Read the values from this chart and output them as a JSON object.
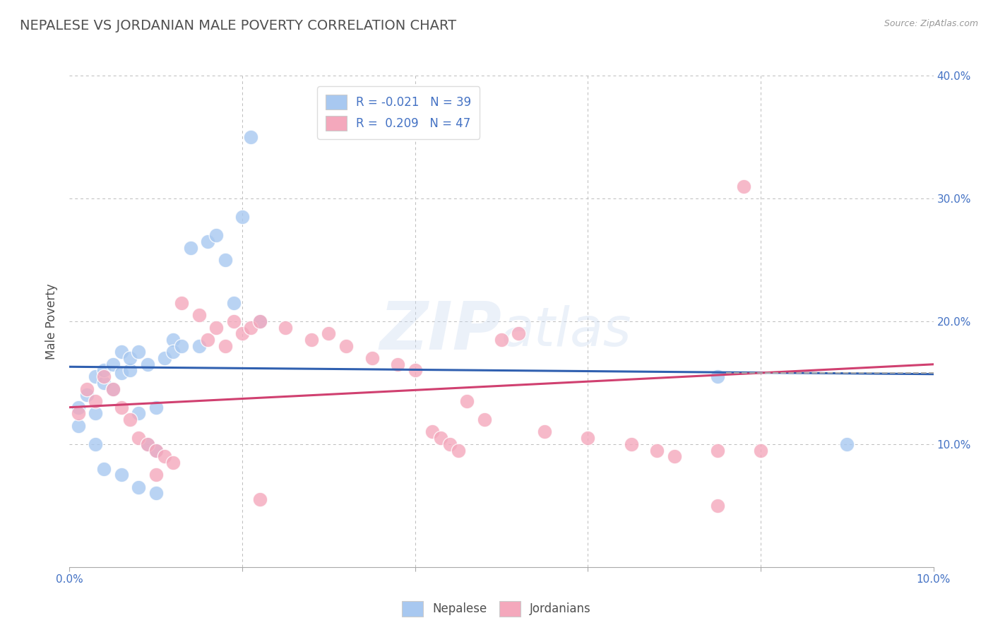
{
  "title": "NEPALESE VS JORDANIAN MALE POVERTY CORRELATION CHART",
  "source": "Source: ZipAtlas.com",
  "ylabel": "Male Poverty",
  "xlim": [
    0,
    0.1
  ],
  "ylim": [
    0,
    0.4
  ],
  "xticks": [
    0.0,
    0.02,
    0.04,
    0.06,
    0.08,
    0.1
  ],
  "yticks": [
    0.0,
    0.1,
    0.2,
    0.3,
    0.4
  ],
  "right_ytick_labels": [
    "",
    "10.0%",
    "20.0%",
    "30.0%",
    "40.0%"
  ],
  "bottom_xtick_labels_left": "0.0%",
  "bottom_xtick_labels_right": "10.0%",
  "blue_R": -0.021,
  "blue_N": 39,
  "pink_R": 0.209,
  "pink_N": 47,
  "blue_color": "#A8C8F0",
  "pink_color": "#F4A8BC",
  "blue_line_color": "#3060B0",
  "pink_line_color": "#D04070",
  "blue_scatter": [
    [
      0.001,
      0.13
    ],
    [
      0.002,
      0.14
    ],
    [
      0.003,
      0.155
    ],
    [
      0.003,
      0.125
    ],
    [
      0.004,
      0.15
    ],
    [
      0.004,
      0.16
    ],
    [
      0.005,
      0.145
    ],
    [
      0.005,
      0.165
    ],
    [
      0.006,
      0.158
    ],
    [
      0.006,
      0.175
    ],
    [
      0.007,
      0.16
    ],
    [
      0.007,
      0.17
    ],
    [
      0.008,
      0.175
    ],
    [
      0.008,
      0.125
    ],
    [
      0.009,
      0.165
    ],
    [
      0.009,
      0.1
    ],
    [
      0.01,
      0.13
    ],
    [
      0.01,
      0.095
    ],
    [
      0.011,
      0.17
    ],
    [
      0.012,
      0.185
    ],
    [
      0.012,
      0.175
    ],
    [
      0.013,
      0.18
    ],
    [
      0.014,
      0.26
    ],
    [
      0.015,
      0.18
    ],
    [
      0.016,
      0.265
    ],
    [
      0.017,
      0.27
    ],
    [
      0.018,
      0.25
    ],
    [
      0.019,
      0.215
    ],
    [
      0.02,
      0.285
    ],
    [
      0.021,
      0.35
    ],
    [
      0.022,
      0.2
    ],
    [
      0.003,
      0.1
    ],
    [
      0.001,
      0.115
    ],
    [
      0.004,
      0.08
    ],
    [
      0.006,
      0.075
    ],
    [
      0.008,
      0.065
    ],
    [
      0.01,
      0.06
    ],
    [
      0.075,
      0.155
    ],
    [
      0.09,
      0.1
    ]
  ],
  "pink_scatter": [
    [
      0.002,
      0.145
    ],
    [
      0.003,
      0.135
    ],
    [
      0.004,
      0.155
    ],
    [
      0.005,
      0.145
    ],
    [
      0.006,
      0.13
    ],
    [
      0.007,
      0.12
    ],
    [
      0.008,
      0.105
    ],
    [
      0.009,
      0.1
    ],
    [
      0.01,
      0.095
    ],
    [
      0.011,
      0.09
    ],
    [
      0.012,
      0.085
    ],
    [
      0.001,
      0.125
    ],
    [
      0.013,
      0.215
    ],
    [
      0.015,
      0.205
    ],
    [
      0.016,
      0.185
    ],
    [
      0.017,
      0.195
    ],
    [
      0.018,
      0.18
    ],
    [
      0.019,
      0.2
    ],
    [
      0.02,
      0.19
    ],
    [
      0.021,
      0.195
    ],
    [
      0.022,
      0.2
    ],
    [
      0.025,
      0.195
    ],
    [
      0.028,
      0.185
    ],
    [
      0.03,
      0.19
    ],
    [
      0.032,
      0.18
    ],
    [
      0.035,
      0.17
    ],
    [
      0.038,
      0.165
    ],
    [
      0.04,
      0.16
    ],
    [
      0.042,
      0.11
    ],
    [
      0.043,
      0.105
    ],
    [
      0.044,
      0.1
    ],
    [
      0.045,
      0.095
    ],
    [
      0.046,
      0.135
    ],
    [
      0.048,
      0.12
    ],
    [
      0.05,
      0.185
    ],
    [
      0.052,
      0.19
    ],
    [
      0.055,
      0.11
    ],
    [
      0.06,
      0.105
    ],
    [
      0.065,
      0.1
    ],
    [
      0.068,
      0.095
    ],
    [
      0.07,
      0.09
    ],
    [
      0.075,
      0.095
    ],
    [
      0.08,
      0.095
    ],
    [
      0.01,
      0.075
    ],
    [
      0.022,
      0.055
    ],
    [
      0.075,
      0.05
    ],
    [
      0.078,
      0.31
    ]
  ],
  "blue_trend_x": [
    0.0,
    0.1
  ],
  "blue_trend_y": [
    0.163,
    0.157
  ],
  "pink_trend_x": [
    0.0,
    0.1
  ],
  "pink_trend_y": [
    0.13,
    0.165
  ],
  "dashed_line_x": [
    0.076,
    0.1
  ],
  "dashed_line_y": [
    0.158,
    0.158
  ],
  "background_color": "#FFFFFF",
  "grid_color": "#BBBBBB",
  "title_color": "#505050",
  "axis_label_color": "#4472C4",
  "tick_label_color": "#4472C4",
  "legend_label_color": "#4472C4"
}
